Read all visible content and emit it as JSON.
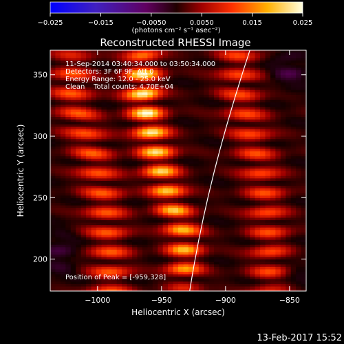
{
  "chart_data": {
    "type": "heatmap",
    "title": "Reconstructed RHESSI Image",
    "xlabel": "Heliocentric X (arcsec)",
    "ylabel": "Heliocentric Y (arcsec)",
    "xlim": [
      -1037,
      -837
    ],
    "ylim": [
      174,
      370
    ],
    "xticks": [
      -1000,
      -950,
      -900,
      -850
    ],
    "xtick_labels": [
      "−1000",
      "−950",
      "−900",
      "−850"
    ],
    "yticks": [
      200,
      250,
      300,
      350
    ],
    "ytick_labels": [
      "200",
      "250",
      "300",
      "350"
    ],
    "colorbar": {
      "colormap": "blue-purple-red-orange-yellow-white",
      "range": [
        -0.025,
        0.025
      ],
      "ticks": [
        -0.025,
        -0.015,
        -0.005,
        0.005,
        0.015,
        0.025
      ],
      "tick_labels": [
        "−0.025",
        "−0.015",
        "−0.0050",
        "0.0050",
        "0.015",
        "0.025"
      ],
      "unit_label": "(photons cm⁻² s⁻¹ asec⁻²)"
    },
    "annotations": [
      "11-Sep-2014 03:40:34.000 to 03:50:34.000",
      "Detectors: 3F 6F 9F, Att 0",
      "Energy Range: 12.0 - 25.0 keV",
      "Clean    Total counts: 4.70E+04"
    ],
    "peak_label": "Position of Peak = [-959,328]",
    "peak": [
      -959,
      328
    ],
    "limb_curve": [
      [
        -928,
        174
      ],
      [
        -918,
        240
      ],
      [
        -903,
        300
      ],
      [
        -881,
        370
      ]
    ],
    "bright_ridges": [
      {
        "x": [
          -965,
          -957,
          -950,
          -942,
          -932
        ],
        "y": [
          330,
          300,
          270,
          245,
          220
        ],
        "peak": 0.025
      },
      {
        "x": [
          -1020,
          -1005,
          -995,
          -990
        ],
        "y": [
          330,
          290,
          250,
          200
        ],
        "peak": 0.012
      },
      {
        "x": [
          -890,
          -880,
          -870,
          -865
        ],
        "y": [
          340,
          300,
          260,
          210
        ],
        "peak": 0.011
      }
    ],
    "negative_regions": [
      {
        "x": -1030,
        "y": 205,
        "value": -0.006
      },
      {
        "x": -850,
        "y": 355,
        "value": -0.006
      },
      {
        "x": -845,
        "y": 190,
        "value": -0.003
      }
    ]
  },
  "footer": {
    "date": "13-Feb-2017 15:52"
  }
}
